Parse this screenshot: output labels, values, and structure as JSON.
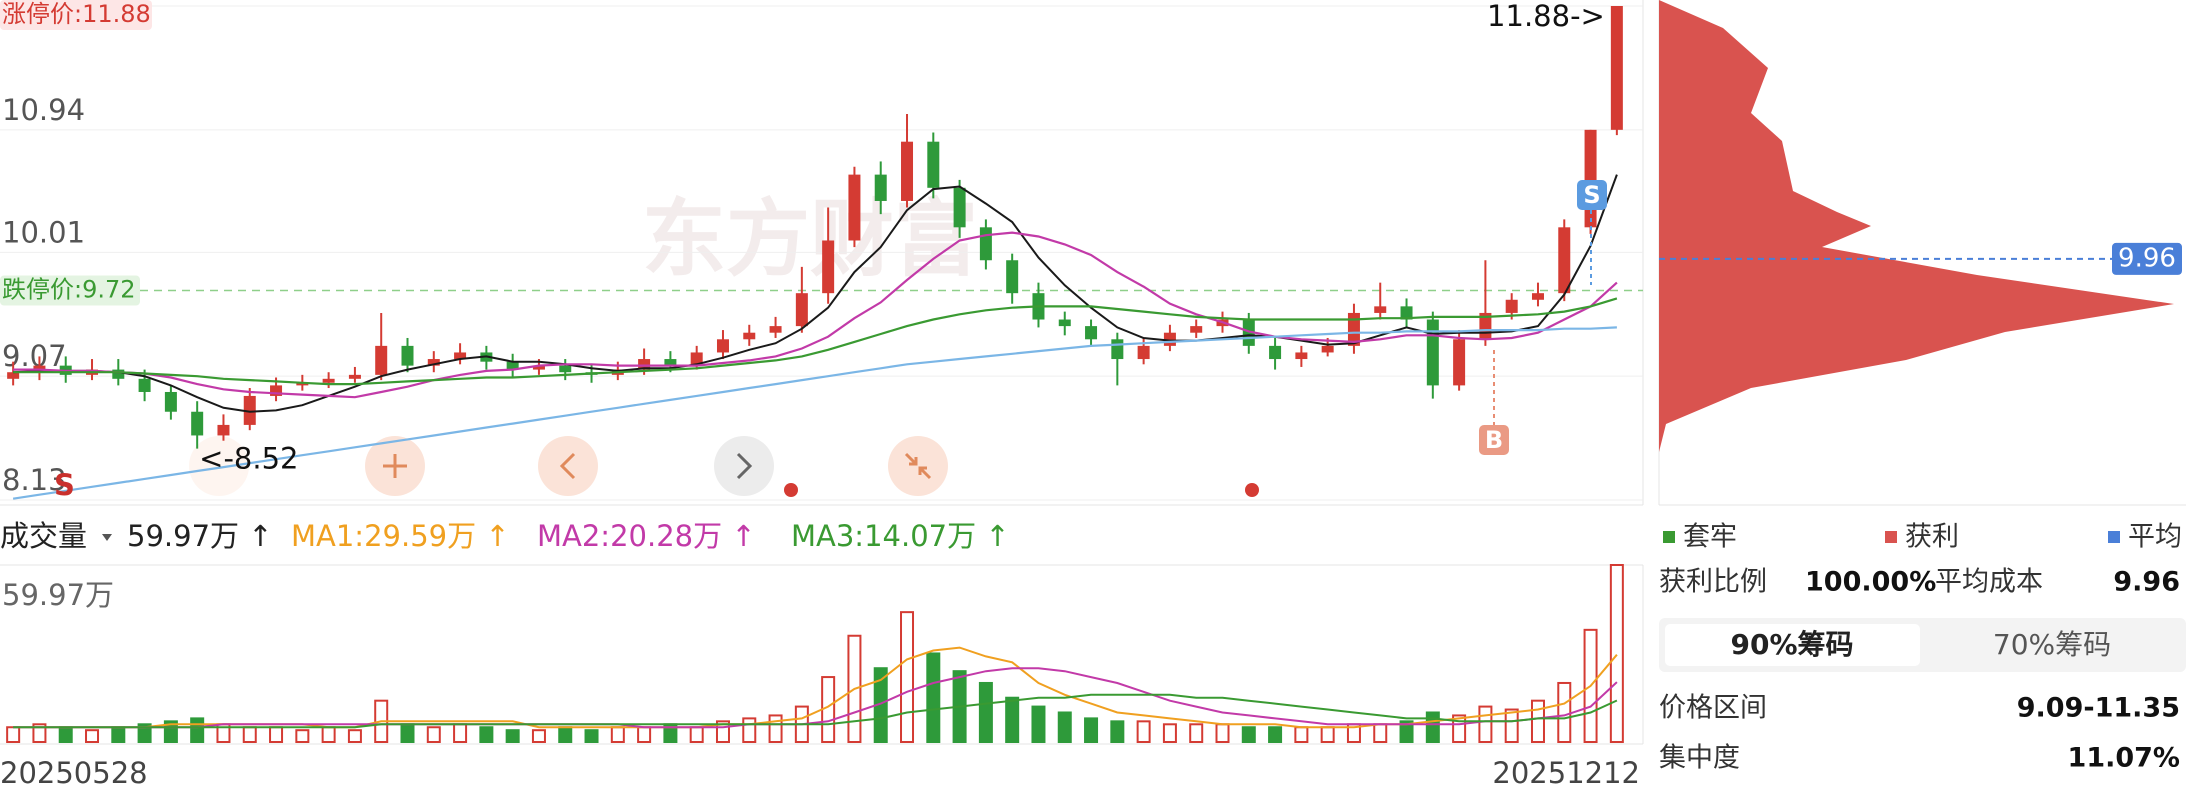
{
  "chart_data": [
    {
      "type": "candlestick",
      "watermark": "东方财富",
      "limit_up_label": "涨停价:11.88",
      "limit_down": {
        "label": "跌停价:9.72",
        "value": 9.72
      },
      "high_label": "11.88->",
      "low_label": "<-8.52",
      "markers": [
        "S",
        "S",
        "B"
      ],
      "start_date": "20250528",
      "end_date": "20251212",
      "ylim": [
        8.13,
        11.88
      ],
      "yticks": [
        11.88,
        10.94,
        10.01,
        9.07,
        8.13
      ],
      "grid": true,
      "up_color": "#d43b33",
      "down_color": "#2e9a3a",
      "open": [
        9.05,
        9.1,
        9.15,
        9.08,
        9.12,
        9.05,
        8.95,
        8.8,
        8.62,
        8.7,
        8.92,
        9.0,
        9.02,
        9.05,
        9.08,
        9.3,
        9.15,
        9.2,
        9.25,
        9.18,
        9.12,
        9.15,
        9.1,
        9.08,
        9.12,
        9.2,
        9.15,
        9.25,
        9.35,
        9.4,
        9.45,
        9.7,
        10.1,
        10.6,
        10.4,
        10.85,
        10.5,
        10.2,
        9.95,
        9.7,
        9.5,
        9.45,
        9.35,
        9.2,
        9.3,
        9.4,
        9.45,
        9.5,
        9.3,
        9.2,
        9.25,
        9.3,
        9.55,
        9.6,
        9.5,
        9.0,
        9.35,
        9.55,
        9.65,
        9.7,
        10.2,
        10.94
      ],
      "high": [
        9.18,
        9.22,
        9.22,
        9.2,
        9.2,
        9.12,
        9.0,
        8.88,
        8.78,
        8.98,
        9.06,
        9.08,
        9.1,
        9.14,
        9.55,
        9.36,
        9.26,
        9.32,
        9.3,
        9.24,
        9.2,
        9.2,
        9.16,
        9.18,
        9.28,
        9.26,
        9.3,
        9.42,
        9.46,
        9.52,
        9.9,
        10.35,
        10.66,
        10.7,
        11.06,
        10.92,
        10.56,
        10.26,
        10.0,
        9.78,
        9.56,
        9.5,
        9.4,
        9.36,
        9.46,
        9.5,
        9.56,
        9.55,
        9.36,
        9.3,
        9.36,
        9.62,
        9.78,
        9.66,
        9.56,
        9.42,
        9.95,
        9.7,
        9.78,
        10.26,
        10.94,
        11.88
      ],
      "low": [
        9.0,
        9.04,
        9.02,
        9.04,
        9.0,
        8.88,
        8.74,
        8.52,
        8.58,
        8.66,
        8.88,
        8.96,
        8.98,
        9.02,
        9.04,
        9.1,
        9.1,
        9.16,
        9.12,
        9.06,
        9.08,
        9.04,
        9.02,
        9.04,
        9.08,
        9.1,
        9.12,
        9.2,
        9.3,
        9.36,
        9.4,
        9.62,
        10.05,
        10.3,
        10.35,
        10.42,
        10.12,
        9.88,
        9.62,
        9.44,
        9.38,
        9.3,
        9.0,
        9.16,
        9.26,
        9.36,
        9.4,
        9.24,
        9.12,
        9.14,
        9.22,
        9.24,
        9.5,
        9.44,
        8.9,
        8.96,
        9.3,
        9.5,
        9.6,
        9.64,
        10.15,
        10.9
      ],
      "close": [
        9.1,
        9.15,
        9.08,
        9.12,
        9.05,
        8.95,
        8.8,
        8.62,
        8.7,
        8.92,
        9.0,
        9.02,
        9.05,
        9.08,
        9.3,
        9.15,
        9.2,
        9.25,
        9.18,
        9.12,
        9.15,
        9.1,
        9.08,
        9.12,
        9.2,
        9.15,
        9.25,
        9.35,
        9.4,
        9.45,
        9.7,
        10.1,
        10.6,
        10.4,
        10.85,
        10.5,
        10.2,
        9.95,
        9.7,
        9.5,
        9.45,
        9.35,
        9.2,
        9.3,
        9.4,
        9.45,
        9.5,
        9.3,
        9.2,
        9.25,
        9.3,
        9.55,
        9.6,
        9.5,
        9.0,
        9.35,
        9.55,
        9.65,
        9.7,
        10.2,
        10.94,
        11.88
      ],
      "lines": [
        {
          "color": "#1a1a1a",
          "values": [
            9.1,
            9.11,
            9.11,
            9.11,
            9.1,
            9.07,
            9.0,
            8.91,
            8.83,
            8.8,
            8.81,
            8.85,
            8.92,
            8.99,
            9.07,
            9.12,
            9.16,
            9.2,
            9.22,
            9.18,
            9.18,
            9.16,
            9.13,
            9.11,
            9.13,
            9.13,
            9.16,
            9.21,
            9.27,
            9.32,
            9.43,
            9.59,
            9.86,
            10.05,
            10.33,
            10.49,
            10.51,
            10.38,
            10.24,
            9.97,
            9.76,
            9.59,
            9.44,
            9.36,
            9.34,
            9.34,
            9.36,
            9.38,
            9.37,
            9.34,
            9.31,
            9.32,
            9.38,
            9.44,
            9.39,
            9.4,
            9.4,
            9.41,
            9.45,
            9.69,
            10.06,
            10.6
          ]
        },
        {
          "color": "#c23aa8",
          "values": [
            9.12,
            9.12,
            9.11,
            9.11,
            9.1,
            9.09,
            9.06,
            9.01,
            8.97,
            8.95,
            8.94,
            8.93,
            8.92,
            8.91,
            8.95,
            8.99,
            9.04,
            9.08,
            9.11,
            9.12,
            9.15,
            9.16,
            9.16,
            9.15,
            9.15,
            9.15,
            9.15,
            9.17,
            9.19,
            9.22,
            9.28,
            9.37,
            9.51,
            9.63,
            9.8,
            9.96,
            10.1,
            10.14,
            10.16,
            10.13,
            10.07,
            9.99,
            9.86,
            9.75,
            9.62,
            9.54,
            9.48,
            9.41,
            9.37,
            9.35,
            9.34,
            9.33,
            9.35,
            9.38,
            9.38,
            9.36,
            9.35,
            9.36,
            9.4,
            9.5,
            9.6,
            9.78
          ]
        },
        {
          "color": "#3a9a32",
          "values": [
            9.1,
            9.1,
            9.1,
            9.1,
            9.1,
            9.09,
            9.08,
            9.07,
            9.05,
            9.04,
            9.03,
            9.02,
            9.01,
            9.01,
            9.02,
            9.03,
            9.04,
            9.05,
            9.06,
            9.06,
            9.07,
            9.08,
            9.09,
            9.1,
            9.11,
            9.12,
            9.13,
            9.15,
            9.17,
            9.19,
            9.22,
            9.27,
            9.33,
            9.39,
            9.45,
            9.5,
            9.54,
            9.57,
            9.59,
            9.6,
            9.6,
            9.6,
            9.58,
            9.56,
            9.54,
            9.52,
            9.51,
            9.5,
            9.5,
            9.5,
            9.5,
            9.5,
            9.51,
            9.51,
            9.52,
            9.52,
            9.52,
            9.53,
            9.54,
            9.56,
            9.6,
            9.66
          ]
        },
        {
          "color": "#7bb6e6",
          "values": [
            8.14,
            8.17,
            8.2,
            8.23,
            8.26,
            8.29,
            8.32,
            8.35,
            8.38,
            8.41,
            8.44,
            8.47,
            8.5,
            8.53,
            8.56,
            8.59,
            8.62,
            8.65,
            8.68,
            8.71,
            8.74,
            8.77,
            8.8,
            8.83,
            8.86,
            8.89,
            8.92,
            8.95,
            8.98,
            9.01,
            9.04,
            9.07,
            9.1,
            9.13,
            9.16,
            9.18,
            9.2,
            9.22,
            9.24,
            9.26,
            9.28,
            9.3,
            9.31,
            9.32,
            9.33,
            9.34,
            9.35,
            9.36,
            9.37,
            9.38,
            9.39,
            9.4,
            9.4,
            9.41,
            9.41,
            9.41,
            9.42,
            9.42,
            9.42,
            9.43,
            9.43,
            9.44
          ]
        }
      ]
    },
    {
      "type": "bar",
      "header": [
        {
          "text": "成交量",
          "color": "#222222"
        },
        {
          "text": "59.97万 ↑",
          "color": "#222222"
        },
        {
          "text": "MA1:29.59万 ↑",
          "color": "#f0a020"
        },
        {
          "text": "MA2:20.28万 ↑",
          "color": "#c23aa8"
        },
        {
          "text": "MA3:14.07万 ↑",
          "color": "#3a9a32"
        }
      ],
      "ylim": [
        0,
        59.97
      ],
      "yticks": [
        {
          "value": 59.97,
          "label": "59.97万"
        }
      ],
      "values": [
        5,
        6,
        5,
        4,
        5,
        6,
        7,
        8,
        6,
        5,
        5,
        4,
        5,
        4,
        14,
        6,
        5,
        6,
        5,
        4,
        4,
        5,
        4,
        5,
        5,
        6,
        5,
        7,
        8,
        9,
        12,
        22,
        36,
        25,
        44,
        30,
        24,
        20,
        15,
        12,
        10,
        8,
        7,
        7,
        6,
        6,
        6,
        5,
        5,
        5,
        5,
        6,
        6,
        7,
        10,
        9,
        12,
        11,
        14,
        20,
        38,
        59.97
      ],
      "lines": [
        {
          "color": "#f0a020",
          "values": [
            5,
            5,
            5,
            5,
            5,
            5,
            6,
            6,
            6,
            6,
            6,
            6,
            5,
            5,
            7,
            7,
            7,
            7,
            7,
            7,
            5,
            5,
            5,
            5,
            5,
            5,
            5,
            6,
            6,
            7,
            8,
            12,
            18,
            21,
            28,
            31,
            32,
            29,
            27,
            20,
            16,
            13,
            10,
            9,
            8,
            7,
            6,
            6,
            6,
            5,
            5,
            5,
            6,
            6,
            7,
            8,
            9,
            10,
            11,
            13,
            19,
            29.59
          ]
        },
        {
          "color": "#c23aa8",
          "values": [
            5,
            5,
            5,
            5,
            5,
            5,
            5,
            5,
            6,
            6,
            6,
            6,
            6,
            6,
            6,
            6,
            6,
            6,
            6,
            6,
            6,
            6,
            6,
            6,
            5,
            5,
            5,
            5,
            6,
            6,
            6,
            7,
            10,
            13,
            17,
            20,
            22,
            24,
            25,
            25,
            24,
            22,
            20,
            17,
            14,
            12,
            10,
            9,
            8,
            7,
            6,
            6,
            6,
            6,
            6,
            6,
            7,
            7,
            8,
            9,
            12,
            20.28
          ]
        },
        {
          "color": "#3a9a32",
          "values": [
            5,
            5,
            5,
            5,
            5,
            5,
            5,
            5,
            5,
            5,
            5,
            5,
            5,
            5,
            6,
            6,
            6,
            6,
            6,
            6,
            6,
            6,
            6,
            6,
            6,
            6,
            6,
            6,
            6,
            6,
            6,
            6,
            7,
            8,
            10,
            11,
            12,
            13,
            14,
            15,
            15,
            16,
            16,
            16,
            16,
            15,
            15,
            14,
            13,
            12,
            11,
            10,
            9,
            8,
            8,
            7,
            7,
            7,
            8,
            8,
            10,
            14.07
          ]
        }
      ]
    }
  ],
  "chip_panel": {
    "avg_cost": 9.96,
    "avg_color": "#4a7fd8",
    "legend": [
      {
        "text": "套牢",
        "color": "#3a9a32"
      },
      {
        "text": "获利",
        "color": "#d9534f"
      },
      {
        "text": "平均",
        "color": "#4a7fd8"
      }
    ],
    "profit_ratio_label": "获利比例",
    "profit_ratio": "100.00%",
    "avg_cost_label": "平均成本",
    "tabs": [
      "90%筹码",
      "70%筹码"
    ],
    "price_range_label": "价格区间",
    "price_range": "9.09-11.35",
    "concentration_label": "集中度",
    "concentration": "11.07%"
  }
}
